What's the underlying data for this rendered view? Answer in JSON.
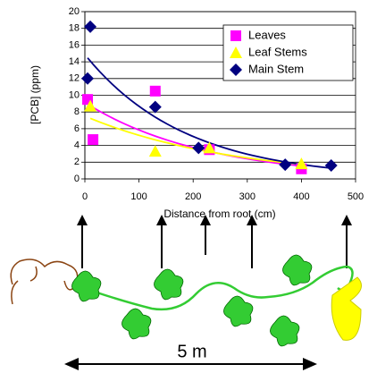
{
  "chart_data": {
    "type": "scatter",
    "x_label": "Distance from root (cm)",
    "y_label": "[PCB] (ppm)",
    "xlim": [
      0,
      500
    ],
    "xticks": [
      0,
      100,
      200,
      300,
      400,
      500
    ],
    "ylim": [
      0,
      20
    ],
    "yticks": [
      0,
      2,
      4,
      6,
      8,
      10,
      12,
      14,
      16,
      18,
      20
    ],
    "grid": true,
    "trendline": "exponential",
    "legend": "top-right",
    "series": [
      {
        "name": "Leaves",
        "color": "#ff00ff",
        "marker": "square",
        "x": [
          5,
          15,
          130,
          230,
          400
        ],
        "values": [
          9.5,
          4.7,
          10.5,
          3.5,
          1.2
        ]
      },
      {
        "name": "Leaf Stems",
        "color": "#ffff00",
        "marker": "triangle",
        "x": [
          10,
          130,
          230,
          400
        ],
        "values": [
          8.7,
          3.3,
          3.7,
          1.8
        ]
      },
      {
        "name": "Main Stem",
        "color": "#000080",
        "marker": "diamond",
        "x": [
          5,
          10,
          130,
          210,
          370,
          455
        ],
        "values": [
          12,
          18.2,
          8.6,
          3.7,
          1.7,
          1.6
        ]
      }
    ]
  },
  "diagram": {
    "scale_label": "5 m"
  }
}
